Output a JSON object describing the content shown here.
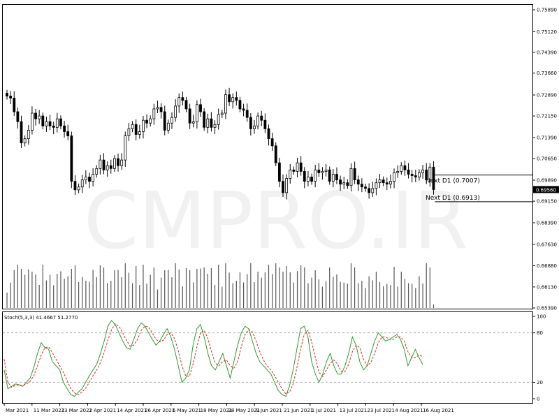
{
  "watermark": "CMPRO.IR",
  "chart_data": [
    {
      "type": "candlestick",
      "price_axis": {
        "ticks": [
          "0.75890",
          "0.75120",
          "0.74390",
          "0.73660",
          "0.72890",
          "0.72150",
          "0.71390",
          "0.70650",
          "0.69890",
          "0.69150",
          "0.68390",
          "0.67630",
          "0.66880",
          "0.66130",
          "0.65390"
        ],
        "ylim": [
          0.6539,
          0.7589
        ],
        "current_price": "0.69560"
      },
      "levels": [
        {
          "label": "Next D1 (0.7007)",
          "value": 0.7007
        },
        {
          "label": "Next D1 (0.6913)",
          "value": 0.6913
        }
      ],
      "date_labels": [
        "Mar 2021",
        "11 Mar 2021",
        "23 Mar 2021",
        "2 Apr 2021",
        "14 Apr 2021",
        "26 Apr 2021",
        "6 May 2021",
        "18 May 2021",
        "28 May 2021",
        "9 Jun 2021",
        "21 Jun 2021",
        "1 Jul 2021",
        "13 Jul 2021",
        "23 Jul 2021",
        "4 Aug 2021",
        "16 Aug 2021"
      ],
      "volume_shown": true,
      "close": [
        0.7285,
        0.7278,
        0.723,
        0.7195,
        0.712,
        0.7135,
        0.7165,
        0.7225,
        0.7205,
        0.7215,
        0.718,
        0.7195,
        0.718,
        0.7175,
        0.7205,
        0.718,
        0.716,
        0.7145,
        0.6985,
        0.6955,
        0.6965,
        0.699,
        0.7,
        0.6985,
        0.701,
        0.703,
        0.706,
        0.7025,
        0.704,
        0.703,
        0.7065,
        0.704,
        0.706,
        0.7145,
        0.717,
        0.7185,
        0.715,
        0.716,
        0.72,
        0.719,
        0.7205,
        0.724,
        0.7245,
        0.723,
        0.7165,
        0.719,
        0.721,
        0.725,
        0.728,
        0.727,
        0.724,
        0.719,
        0.7195,
        0.7255,
        0.723,
        0.7175,
        0.7205,
        0.7175,
        0.7185,
        0.722,
        0.7225,
        0.729,
        0.7265,
        0.728,
        0.727,
        0.724,
        0.7235,
        0.721,
        0.717,
        0.718,
        0.7215,
        0.72,
        0.717,
        0.7135,
        0.711,
        0.705,
        0.6985,
        0.6945,
        0.6995,
        0.7025,
        0.702,
        0.705,
        0.702,
        0.6985,
        0.7,
        0.6985,
        0.7025,
        0.7015,
        0.702,
        0.7025,
        0.6985,
        0.701,
        0.699,
        0.6975,
        0.698,
        0.697,
        0.703,
        0.699,
        0.6975,
        0.6965,
        0.696,
        0.6945,
        0.696,
        0.698,
        0.699,
        0.698,
        0.6975,
        0.6985,
        0.7015,
        0.702,
        0.704,
        0.7025,
        0.701,
        0.7005,
        0.7,
        0.7015,
        0.7025,
        0.699,
        0.7035,
        0.6956
      ]
    },
    {
      "type": "line",
      "indicator": "Stoch(5,3,3)",
      "header": "Stoch(5,3,3) 41.4667 51.2770",
      "ylim": [
        0,
        100
      ],
      "ticks": [
        "100",
        "80",
        "20",
        "0"
      ],
      "levels": [
        80,
        20
      ],
      "series": [
        {
          "values": [
            35,
            12,
            15,
            18,
            17,
            15,
            20,
            25,
            38,
            55,
            68,
            62,
            60,
            45,
            40,
            35,
            20,
            12,
            5,
            3,
            8,
            12,
            20,
            28,
            35,
            42,
            55,
            70,
            88,
            95,
            90,
            80,
            70,
            62,
            60,
            72,
            85,
            92,
            88,
            80,
            72,
            65,
            70,
            78,
            85,
            75,
            60,
            40,
            20,
            25,
            35,
            65,
            85,
            90,
            75,
            55,
            40,
            35,
            45,
            55,
            40,
            25,
            45,
            65,
            80,
            88,
            85,
            70,
            55,
            45,
            40,
            35,
            30,
            20,
            10,
            5,
            3,
            15,
            35,
            60,
            85,
            88,
            75,
            45,
            30,
            20,
            30,
            45,
            55,
            40,
            30,
            30,
            40,
            55,
            75,
            65,
            45,
            35,
            40,
            55,
            70,
            80,
            75,
            70,
            72,
            75,
            78,
            72,
            60,
            40,
            50,
            60,
            50,
            41.47
          ]
        },
        {
          "values": [
            48,
            20,
            14,
            16,
            17,
            16,
            18,
            21,
            28,
            40,
            53,
            62,
            63,
            56,
            48,
            40,
            32,
            22,
            12,
            7,
            5,
            8,
            13,
            20,
            28,
            35,
            44,
            56,
            71,
            84,
            91,
            88,
            80,
            71,
            64,
            65,
            72,
            83,
            88,
            87,
            80,
            72,
            69,
            71,
            78,
            80,
            73,
            58,
            40,
            28,
            27,
            42,
            62,
            80,
            83,
            73,
            57,
            43,
            40,
            45,
            47,
            40,
            37,
            45,
            63,
            78,
            84,
            81,
            70,
            57,
            47,
            40,
            35,
            28,
            20,
            12,
            6,
            8,
            18,
            37,
            60,
            78,
            83,
            69,
            50,
            32,
            27,
            35,
            43,
            47,
            42,
            33,
            33,
            42,
            57,
            65,
            62,
            48,
            40,
            44,
            55,
            68,
            75,
            75,
            72,
            72,
            75,
            75,
            70,
            57,
            50,
            50,
            53,
            51.28
          ]
        }
      ]
    }
  ]
}
